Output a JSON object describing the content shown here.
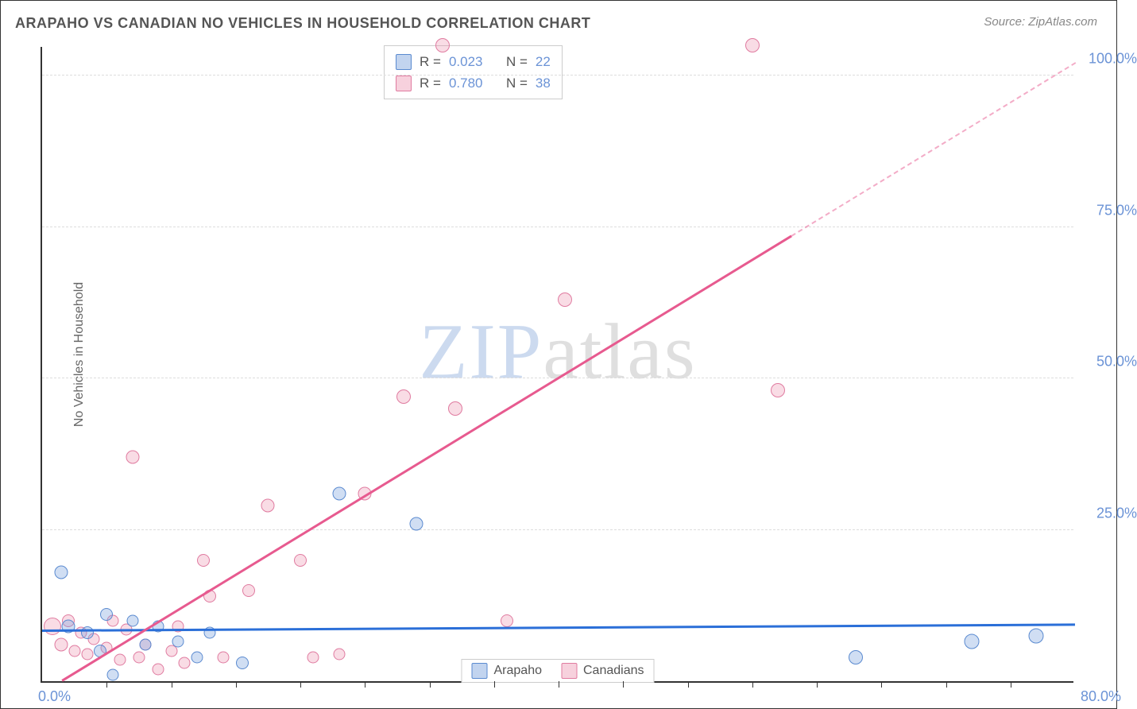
{
  "title": "ARAPAHO VS CANADIAN NO VEHICLES IN HOUSEHOLD CORRELATION CHART",
  "source_label": "Source:",
  "source_value": "ZipAtlas.com",
  "ylabel": "No Vehicles in Household",
  "watermark_z": "ZIP",
  "watermark_rest": "atlas",
  "chart": {
    "type": "scatter",
    "xlim": [
      0,
      80
    ],
    "ylim": [
      0,
      105
    ],
    "x_tick_labels": {
      "0": "0.0%",
      "80": "80.0%"
    },
    "y_tick_labels": {
      "25": "25.0%",
      "50": "50.0%",
      "75": "75.0%",
      "100": "100.0%"
    },
    "x_minor_ticks": [
      5,
      10,
      15,
      20,
      25,
      30,
      35,
      40,
      45,
      50,
      55,
      60,
      65,
      70,
      75
    ],
    "grid_y": [
      25,
      50,
      75,
      100
    ],
    "background_color": "#ffffff",
    "grid_color": "#dddddd",
    "axis_color": "#333333",
    "label_fontsize": 16,
    "tick_fontsize": 18,
    "tick_color": "#6b93d6"
  },
  "series": {
    "arapaho": {
      "label": "Arapaho",
      "color_fill": "rgba(120,160,220,0.35)",
      "color_stroke": "#5a8ad0",
      "trend_color": "#2b6fd8",
      "marker_size": 18,
      "trend": {
        "x1": 0,
        "y1": 8.2,
        "x2": 80,
        "y2": 9.2
      },
      "stats": {
        "R": "0.023",
        "N": "22"
      },
      "points": [
        {
          "x": 1.5,
          "y": 18,
          "r": 17
        },
        {
          "x": 2,
          "y": 9,
          "r": 17
        },
        {
          "x": 3.5,
          "y": 8,
          "r": 16
        },
        {
          "x": 4.5,
          "y": 5,
          "r": 16
        },
        {
          "x": 5,
          "y": 11,
          "r": 16
        },
        {
          "x": 5.5,
          "y": 1,
          "r": 15
        },
        {
          "x": 7,
          "y": 10,
          "r": 15
        },
        {
          "x": 8,
          "y": 6,
          "r": 15
        },
        {
          "x": 9,
          "y": 9,
          "r": 15
        },
        {
          "x": 10.5,
          "y": 6.5,
          "r": 15
        },
        {
          "x": 12,
          "y": 4,
          "r": 15
        },
        {
          "x": 13,
          "y": 8,
          "r": 15
        },
        {
          "x": 15.5,
          "y": 3,
          "r": 16
        },
        {
          "x": 23,
          "y": 31,
          "r": 17
        },
        {
          "x": 29,
          "y": 26,
          "r": 17
        },
        {
          "x": 63,
          "y": 4,
          "r": 18
        },
        {
          "x": 72,
          "y": 6.5,
          "r": 19
        },
        {
          "x": 77,
          "y": 7.5,
          "r": 19
        }
      ]
    },
    "canadians": {
      "label": "Canadians",
      "color_fill": "rgba(235,140,170,0.3)",
      "color_stroke": "#e07ba0",
      "trend_color": "#e75a8f",
      "marker_size": 18,
      "trend": {
        "x1": 0,
        "y1": -2,
        "x2": 80,
        "y2": 102
      },
      "trend_dash_from_x": 58,
      "stats": {
        "R": "0.780",
        "N": "38"
      },
      "points": [
        {
          "x": 0.8,
          "y": 9,
          "r": 22
        },
        {
          "x": 1.5,
          "y": 6,
          "r": 17
        },
        {
          "x": 2,
          "y": 10,
          "r": 16
        },
        {
          "x": 2.5,
          "y": 5,
          "r": 15
        },
        {
          "x": 3,
          "y": 8,
          "r": 15
        },
        {
          "x": 3.5,
          "y": 4.5,
          "r": 15
        },
        {
          "x": 4,
          "y": 7,
          "r": 15
        },
        {
          "x": 5,
          "y": 5.5,
          "r": 15
        },
        {
          "x": 5.5,
          "y": 10,
          "r": 15
        },
        {
          "x": 6,
          "y": 3.5,
          "r": 15
        },
        {
          "x": 6.5,
          "y": 8.5,
          "r": 15
        },
        {
          "x": 7,
          "y": 37,
          "r": 17
        },
        {
          "x": 7.5,
          "y": 4,
          "r": 15
        },
        {
          "x": 8,
          "y": 6,
          "r": 15
        },
        {
          "x": 9,
          "y": 2,
          "r": 15
        },
        {
          "x": 10,
          "y": 5,
          "r": 15
        },
        {
          "x": 10.5,
          "y": 9,
          "r": 15
        },
        {
          "x": 11,
          "y": 3,
          "r": 15
        },
        {
          "x": 12.5,
          "y": 20,
          "r": 16
        },
        {
          "x": 13,
          "y": 14,
          "r": 16
        },
        {
          "x": 14,
          "y": 4,
          "r": 15
        },
        {
          "x": 16,
          "y": 15,
          "r": 16
        },
        {
          "x": 17.5,
          "y": 29,
          "r": 17
        },
        {
          "x": 20,
          "y": 20,
          "r": 16
        },
        {
          "x": 21,
          "y": 4,
          "r": 15
        },
        {
          "x": 23,
          "y": 4.5,
          "r": 15
        },
        {
          "x": 25,
          "y": 31,
          "r": 17
        },
        {
          "x": 28,
          "y": 47,
          "r": 18
        },
        {
          "x": 31,
          "y": 105,
          "r": 18
        },
        {
          "x": 32,
          "y": 45,
          "r": 18
        },
        {
          "x": 36,
          "y": 10,
          "r": 16
        },
        {
          "x": 40.5,
          "y": 63,
          "r": 18
        },
        {
          "x": 55,
          "y": 105,
          "r": 18
        },
        {
          "x": 57,
          "y": 48,
          "r": 18
        }
      ]
    }
  },
  "stats_box": {
    "r_label": "R =",
    "n_label": "N ="
  },
  "legend_bottom": [
    "Arapaho",
    "Canadians"
  ]
}
